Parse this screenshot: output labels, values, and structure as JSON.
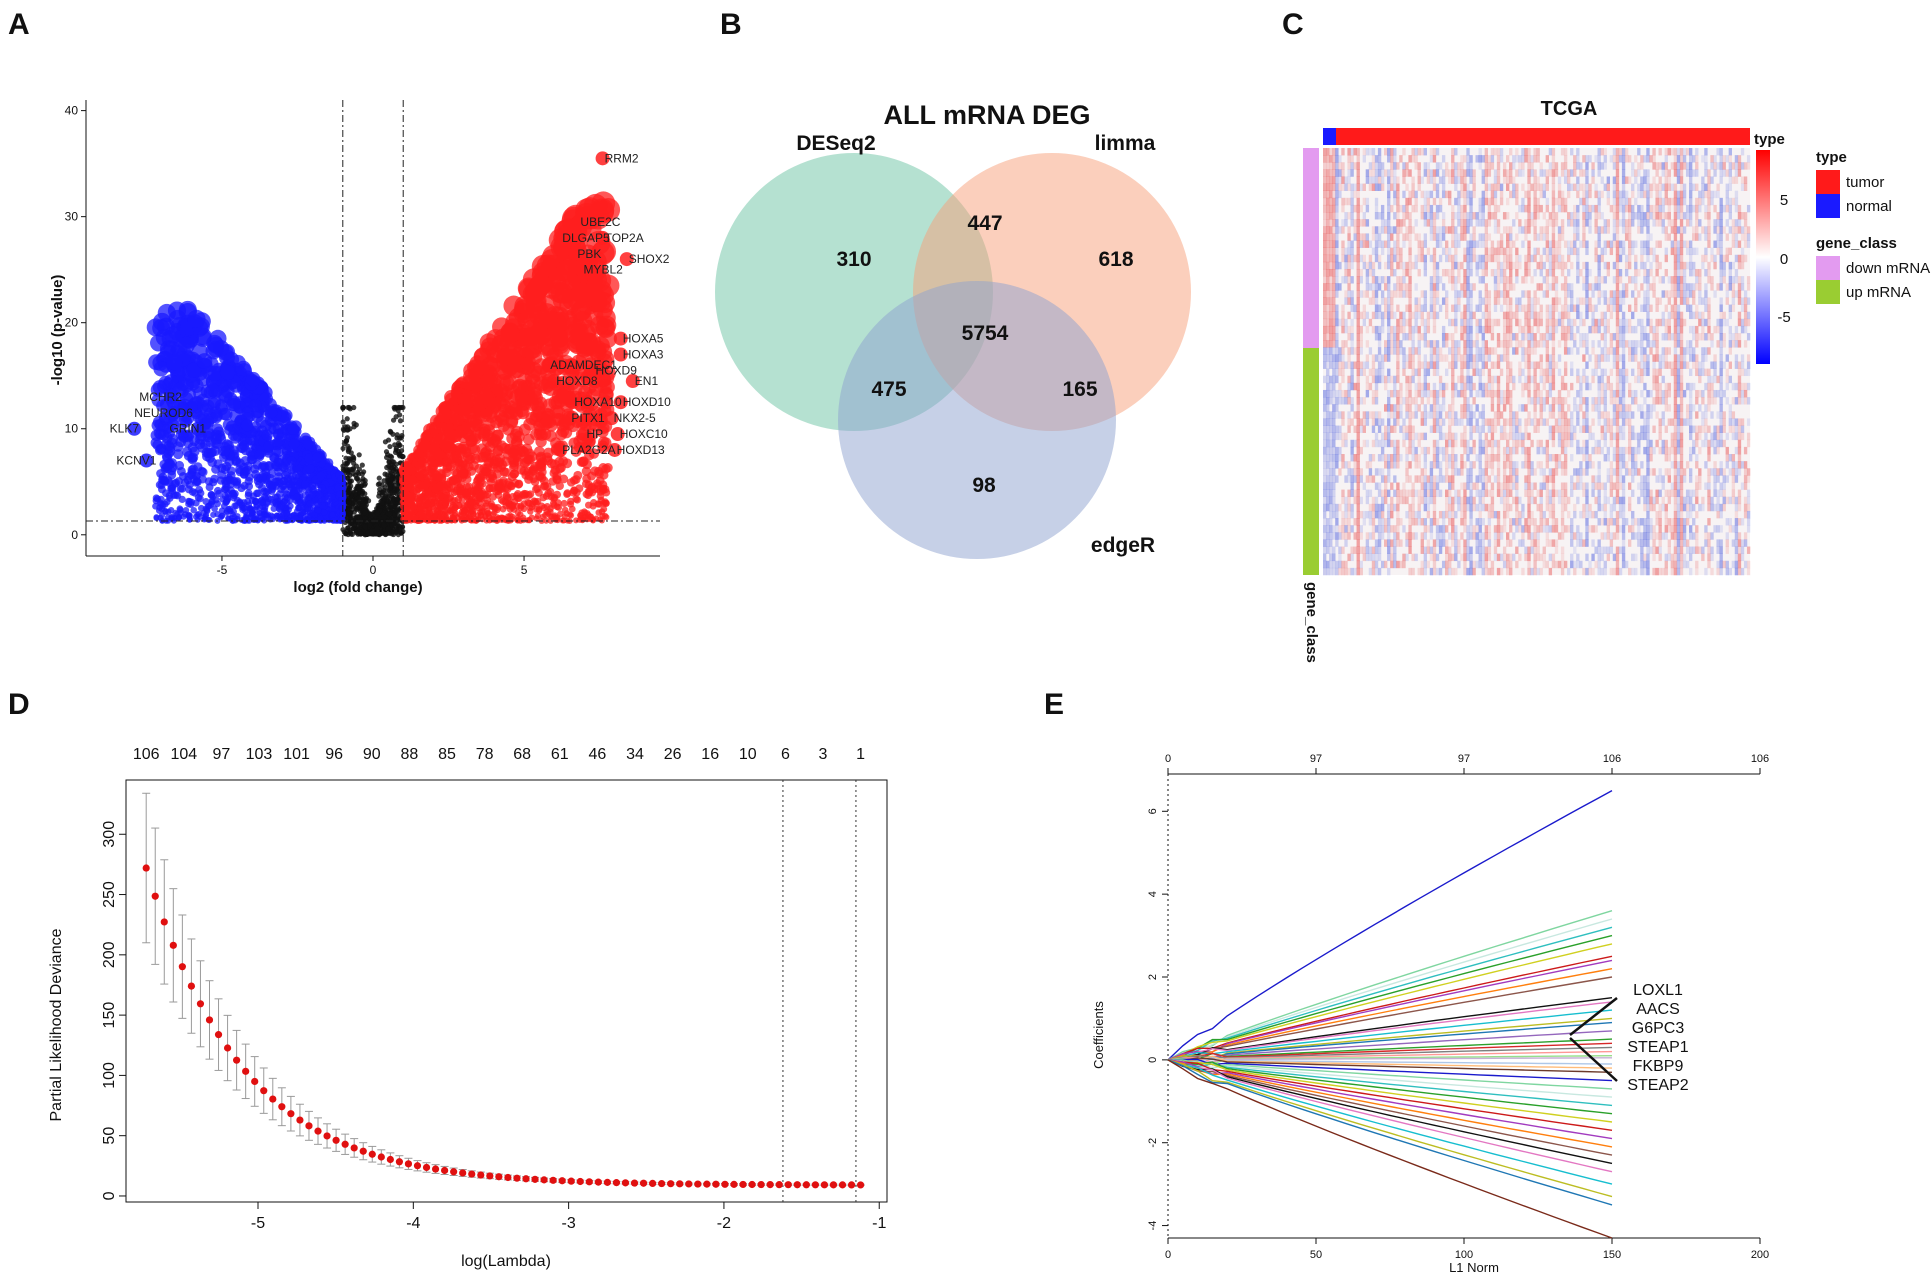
{
  "panels": {
    "A": "A",
    "B": "B",
    "C": "C",
    "D": "D",
    "E": "E"
  },
  "chart_data": [
    {
      "id": "A",
      "type": "scatter",
      "title": "",
      "xlabel": "log2 (fold change)",
      "ylabel": "-log10 (p-value)",
      "xlim": [
        -9.5,
        9.5
      ],
      "ylim": [
        -2,
        41
      ],
      "xticks": [
        -5,
        0,
        5
      ],
      "yticks": [
        0,
        10,
        20,
        30,
        40
      ],
      "thresholds": {
        "logfc": [
          -1,
          1
        ],
        "neglog10p": 1.3
      },
      "series_colors": {
        "down": "#1a1aff",
        "nonsig": "#111111",
        "up": "#ff1f1f"
      },
      "labeled_genes": [
        {
          "name": "RRM2",
          "x": 7.6,
          "y": 35.5
        },
        {
          "name": "UBE2C",
          "x": 6.8,
          "y": 29.5
        },
        {
          "name": "DLGAP5",
          "x": 6.2,
          "y": 28.0
        },
        {
          "name": "TOP2A",
          "x": 7.6,
          "y": 28.0
        },
        {
          "name": "PBK",
          "x": 6.7,
          "y": 26.5
        },
        {
          "name": "SHOX2",
          "x": 8.4,
          "y": 26.0
        },
        {
          "name": "MYBL2",
          "x": 6.9,
          "y": 25.0
        },
        {
          "name": "HOXA5",
          "x": 8.2,
          "y": 18.5
        },
        {
          "name": "HOXA3",
          "x": 8.2,
          "y": 17.0
        },
        {
          "name": "ADAMDEC1",
          "x": 5.8,
          "y": 16.0
        },
        {
          "name": "HOXD9",
          "x": 7.3,
          "y": 15.5
        },
        {
          "name": "HOXD8",
          "x": 6.0,
          "y": 14.5
        },
        {
          "name": "EN1",
          "x": 8.6,
          "y": 14.5
        },
        {
          "name": "HOXA10",
          "x": 6.6,
          "y": 12.5
        },
        {
          "name": "HOXD10",
          "x": 8.2,
          "y": 12.5
        },
        {
          "name": "PITX1",
          "x": 6.5,
          "y": 11.0
        },
        {
          "name": "NKX2-5",
          "x": 7.9,
          "y": 11.0
        },
        {
          "name": "HP",
          "x": 7.0,
          "y": 9.5
        },
        {
          "name": "HOXC10",
          "x": 8.1,
          "y": 9.5
        },
        {
          "name": "PLA2G2A",
          "x": 6.2,
          "y": 8.0
        },
        {
          "name": "HOXD13",
          "x": 8.0,
          "y": 8.0
        },
        {
          "name": "MCHR2",
          "x": -6.7,
          "y": 13.0
        },
        {
          "name": "NEUROD6",
          "x": -6.6,
          "y": 11.5
        },
        {
          "name": "GRIN1",
          "x": -5.8,
          "y": 10.0
        },
        {
          "name": "KLK7",
          "x": -7.9,
          "y": 10.0
        },
        {
          "name": "KCNV1",
          "x": -7.5,
          "y": 7.0
        }
      ]
    },
    {
      "id": "B",
      "type": "venn",
      "title": "ALL mRNA DEG",
      "sets": [
        {
          "name": "DESeq2",
          "color": "#6cc3a3"
        },
        {
          "name": "limma",
          "color": "#f7a07a"
        },
        {
          "name": "edgeR",
          "color": "#8ea2cf"
        }
      ],
      "regions": {
        "deseq2_only": "310",
        "limma_only": "618",
        "edger_only": "98",
        "deseq2_limma": "447",
        "deseq2_edger": "475",
        "limma_edger": "165",
        "all": "5754"
      }
    },
    {
      "id": "C",
      "type": "heatmap",
      "title": "TCGA",
      "annotation_label": "gene_class",
      "colorbar": {
        "title": "type",
        "ticks": [
          "5",
          "0",
          "-5"
        ]
      },
      "legend": {
        "type_title": "type",
        "type_items": [
          {
            "label": "tumor",
            "color": "#ff1a1a"
          },
          {
            "label": "normal",
            "color": "#1a1aff"
          }
        ],
        "class_title": "gene_class",
        "class_items": [
          {
            "label": "down mRNA",
            "color": "#e39bf0"
          },
          {
            "label": "up mRNA",
            "color": "#9acd32"
          }
        ]
      }
    },
    {
      "id": "D",
      "type": "line",
      "xlabel": "log(Lambda)",
      "ylabel": "Partial Likelihood Deviance",
      "xlim": [
        -5.85,
        -0.95
      ],
      "ylim": [
        -5,
        345
      ],
      "xticks": [
        "-5",
        "-4",
        "-3",
        "-2",
        "-1"
      ],
      "yticks": [
        "0",
        "50",
        "100",
        "150",
        "200",
        "250",
        "300"
      ],
      "top_labels": [
        "106",
        "104",
        "97",
        "103",
        "101",
        "96",
        "90",
        "88",
        "85",
        "78",
        "68",
        "61",
        "46",
        "34",
        "26",
        "16",
        "10",
        "6",
        "3",
        "1"
      ],
      "vlines": [
        -1.62,
        -1.15
      ],
      "curve": {
        "x_start": -5.72,
        "x_end": -1.12,
        "points": 80,
        "y_start": 272,
        "y_plateau": 9,
        "decay_rate": 1.6,
        "se_start": 62,
        "se_plateau": 0.5
      }
    },
    {
      "id": "E",
      "type": "line",
      "xlabel": "L1 Norm",
      "ylabel": "Coefficients",
      "xlim": [
        0,
        200
      ],
      "ylim": [
        -4.3,
        6.9
      ],
      "xticks": [
        "0",
        "50",
        "100",
        "150",
        "200"
      ],
      "yticks": [
        "-4",
        "-2",
        "0",
        "2",
        "4",
        "6"
      ],
      "top_ticks": [
        "0",
        "97",
        "97",
        "106",
        "106"
      ],
      "series_end_values": [
        6.5,
        3.6,
        3.4,
        3.2,
        3.0,
        2.8,
        2.5,
        2.4,
        2.2,
        2.0,
        1.5,
        1.4,
        1.2,
        1.0,
        0.9,
        0.7,
        0.5,
        0.4,
        0.3,
        0.2,
        0.1,
        0.05,
        -0.1,
        -0.2,
        -0.3,
        -0.5,
        -0.7,
        -0.9,
        -1.1,
        -1.3,
        -1.5,
        -1.7,
        -1.9,
        -2.1,
        -2.3,
        -2.5,
        -2.7,
        -3.0,
        -3.3,
        -3.5,
        -4.3
      ],
      "highlighted_genes": [
        "LOXL1",
        "AACS",
        "G6PC3",
        "STEAP1",
        "FKBP9",
        "STEAP2"
      ]
    }
  ]
}
